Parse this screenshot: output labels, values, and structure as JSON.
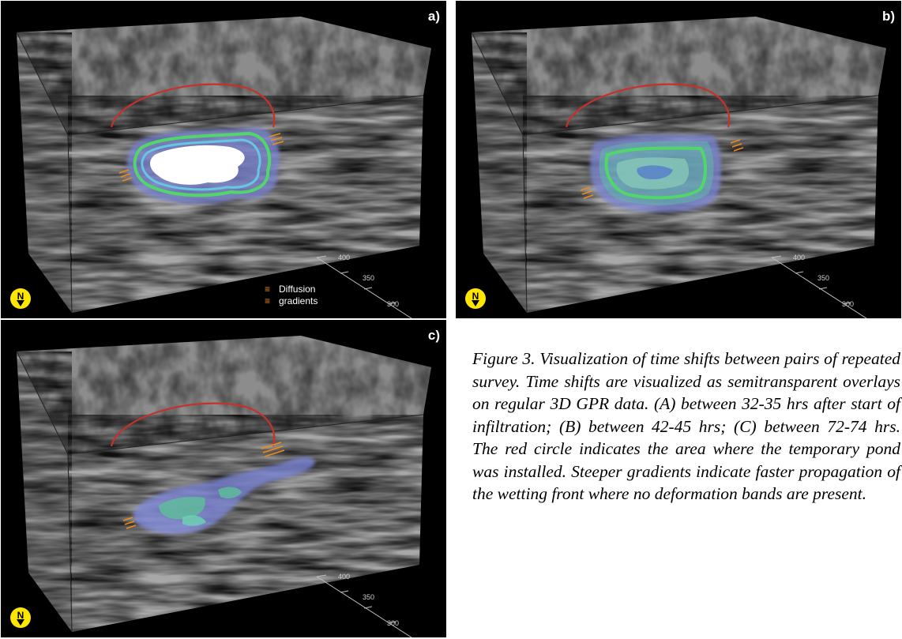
{
  "panels": [
    {
      "label": "a)",
      "ticks": [
        "400",
        "350",
        "300"
      ]
    },
    {
      "label": "b)",
      "ticks": [
        "400",
        "350",
        "300"
      ]
    },
    {
      "label": "c)",
      "ticks": [
        "400",
        "350",
        "300"
      ]
    }
  ],
  "north_label": "N",
  "legend": {
    "line1": "Diffusion",
    "line2": "gradients"
  },
  "caption": "Figure 3. Visualization of time shifts between pairs of repeated survey. Time shifts are visualized as semitransparent overlays on regular 3D GPR data.  (A) between 32-35 hrs after start of infiltration; (B) between 42-45 hrs; (C) between 72-74 hrs. The red circle indicates the area where the temporary pond was installed. Steeper gradients indicate faster propagation of the wetting front where no deformation bands are present.",
  "colors": {
    "pond_circle": "#c8302a",
    "arrows": "#f08a1a",
    "overlay_blue": "#7b86d6",
    "overlay_green": "#52d66a",
    "north_badge": "#ffe600"
  }
}
